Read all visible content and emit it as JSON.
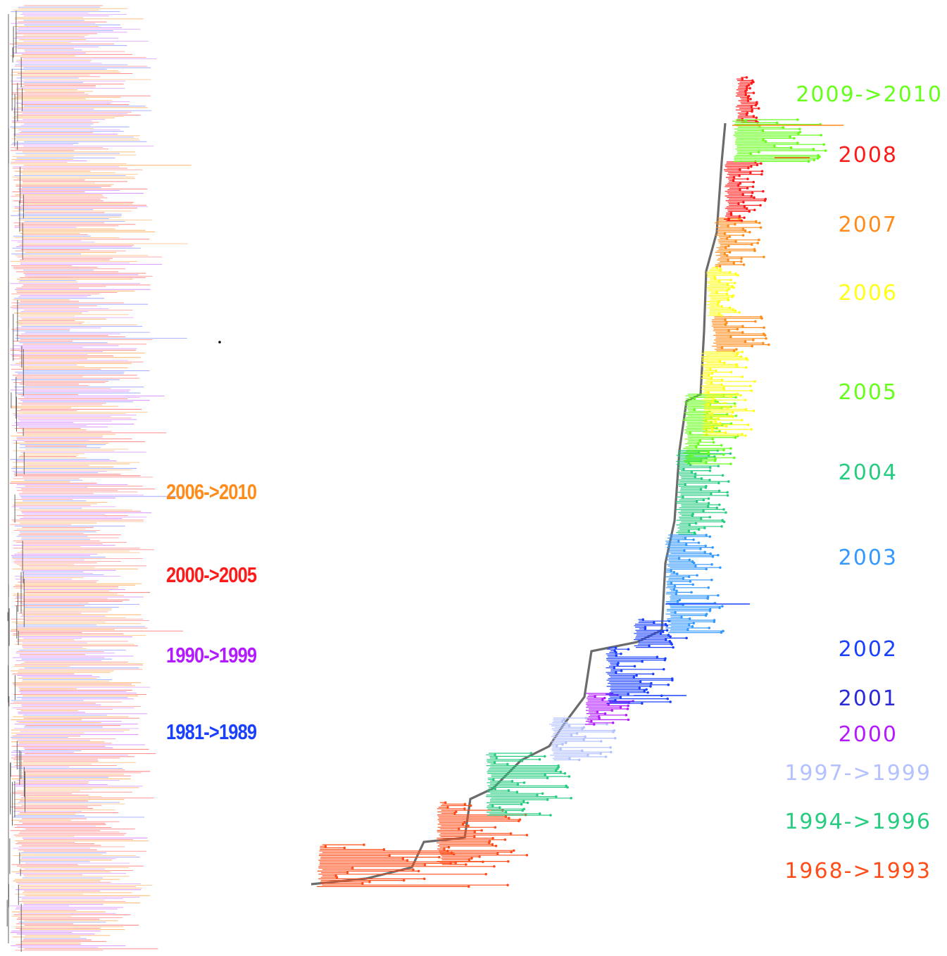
{
  "left_tree": {
    "labels": [
      {
        "text": "2006->2010",
        "color": "#ff8c1a"
      },
      {
        "text": "2000->2005",
        "color": "#ff1a1a"
      },
      {
        "text": "1990->1999",
        "color": "#b31aff"
      },
      {
        "text": "1981->1989",
        "color": "#1a40ff"
      }
    ]
  },
  "right_tree": {
    "labels": [
      {
        "text": "2009->2010",
        "color": "#66ff1a"
      },
      {
        "text": "2008",
        "color": "#ff1a1a"
      },
      {
        "text": "2007",
        "color": "#ff8c1a"
      },
      {
        "text": "2006",
        "color": "#ffff1a"
      },
      {
        "text": "2005",
        "color": "#66ff1a"
      },
      {
        "text": "2004",
        "color": "#26cc80"
      },
      {
        "text": "2003",
        "color": "#3399ff"
      },
      {
        "text": "2002",
        "color": "#1a40ff"
      },
      {
        "text": "2001",
        "color": "#2a2ad9"
      },
      {
        "text": "2000",
        "color": "#b31aff"
      },
      {
        "text": "1997->1999",
        "color": "#b3c1ff"
      },
      {
        "text": "1994->1996",
        "color": "#26cc80"
      },
      {
        "text": "1968->1993",
        "color": "#ff4d1a"
      }
    ]
  }
}
